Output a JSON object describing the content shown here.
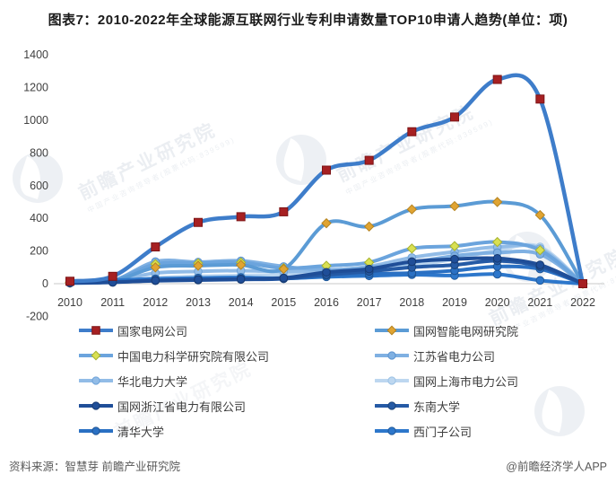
{
  "title": "图表7：2010-2022年全球能源互联网行业专利申请数量TOP10申请人趋势(单位：项)",
  "footer": {
    "source": "资料来源：智慧芽 前瞻产业研究院",
    "credit": "@前瞻经济学人APP"
  },
  "watermark": {
    "text": "前瞻产业研究院",
    "subtext": "中国产业咨询领导者(股票代码:839599)"
  },
  "colors": {
    "axis_line": "#c9c9c9",
    "tick_label": "#404040",
    "title_text": "#1a1a1a",
    "footer_text": "#595959"
  },
  "chart_data": {
    "type": "line",
    "title": "图表7：2010-2022年全球能源互联网行业专利申请数量TOP10申请人趋势(单位：项)",
    "xlabel": "",
    "ylabel": "",
    "x": [
      2010,
      2011,
      2012,
      2013,
      2014,
      2015,
      2016,
      2017,
      2018,
      2019,
      2020,
      2021,
      2022
    ],
    "ylim": [
      -200,
      1400
    ],
    "yticks": [
      -200,
      0,
      200,
      400,
      600,
      800,
      1000,
      1200,
      1400
    ],
    "grid": false,
    "legend_position": "bottom",
    "series": [
      {
        "name": "国家电网公司",
        "marker": "square",
        "line_color": "#3e7dca",
        "marker_color": "#a62022",
        "marker_edge": "#7d1416",
        "values": [
          15,
          45,
          225,
          375,
          410,
          440,
          695,
          755,
          930,
          1020,
          1250,
          1130,
          0
        ]
      },
      {
        "name": "国网智能电网研究院",
        "marker": "diamond",
        "line_color": "#5b9bd5",
        "marker_color": "#e0a432",
        "marker_edge": "#b5831f",
        "values": [
          5,
          15,
          100,
          110,
          115,
          90,
          370,
          350,
          455,
          475,
          500,
          420,
          0
        ]
      },
      {
        "name": "中国电力科学研究院有限公司",
        "marker": "diamond",
        "line_color": "#6ba4dd",
        "marker_color": "#d9e052",
        "marker_edge": "#a8b22e",
        "values": [
          10,
          20,
          120,
          125,
          130,
          95,
          110,
          130,
          215,
          230,
          255,
          205,
          0
        ]
      },
      {
        "name": "江苏省电力公司",
        "marker": "circle",
        "line_color": "#7fb0e2",
        "marker_color": "#7fb0e2",
        "marker_edge": "#5b93cf",
        "values": [
          8,
          18,
          135,
          132,
          140,
          105,
          85,
          100,
          130,
          170,
          190,
          180,
          0
        ]
      },
      {
        "name": "华北电力大学",
        "marker": "circle",
        "line_color": "#92bce7",
        "marker_color": "#92bce7",
        "marker_edge": "#6fa3d9",
        "values": [
          5,
          15,
          65,
          75,
          80,
          75,
          80,
          105,
          160,
          195,
          225,
          215,
          0
        ]
      },
      {
        "name": "国网上海市电力公司",
        "marker": "circle",
        "line_color": "#bdd7f0",
        "marker_color": "#bdd7f0",
        "marker_edge": "#9cc2e5",
        "values": [
          3,
          10,
          35,
          45,
          50,
          55,
          60,
          80,
          110,
          150,
          205,
          225,
          0
        ]
      },
      {
        "name": "国网浙江省电力有限公司",
        "marker": "circle",
        "line_color": "#1f4e98",
        "marker_color": "#1f4e98",
        "marker_edge": "#173a72",
        "values": [
          4,
          8,
          20,
          25,
          28,
          35,
          70,
          90,
          135,
          150,
          155,
          115,
          0
        ]
      },
      {
        "name": "东南大学",
        "marker": "circle",
        "line_color": "#255aa5",
        "marker_color": "#255aa5",
        "marker_edge": "#1a4379",
        "values": [
          5,
          10,
          18,
          22,
          26,
          30,
          55,
          75,
          100,
          115,
          140,
          105,
          0
        ]
      },
      {
        "name": "清华大学",
        "marker": "circle",
        "line_color": "#2a70c3",
        "marker_color": "#2a70c3",
        "marker_edge": "#1f5494",
        "values": [
          5,
          10,
          22,
          26,
          30,
          35,
          50,
          60,
          65,
          80,
          105,
          90,
          0
        ]
      },
      {
        "name": "西门子公司",
        "marker": "circle",
        "line_color": "#2d77cb",
        "marker_color": "#2d77cb",
        "marker_edge": "#215a9b",
        "values": [
          12,
          20,
          30,
          35,
          38,
          32,
          42,
          48,
          55,
          50,
          58,
          20,
          0
        ]
      }
    ]
  }
}
